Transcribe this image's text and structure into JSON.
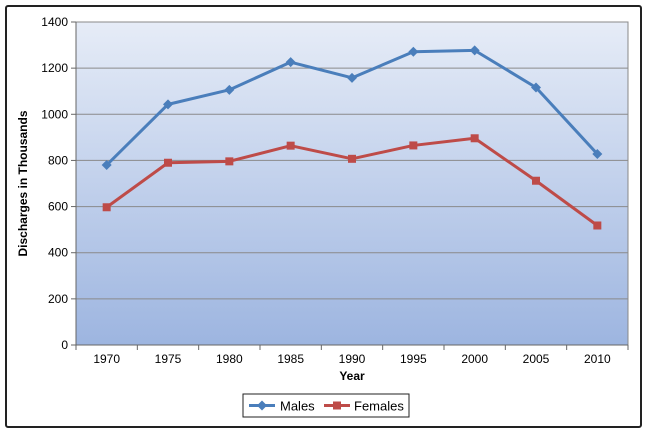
{
  "chart_data": {
    "type": "line",
    "x": [
      1970,
      1975,
      1980,
      1985,
      1990,
      1995,
      2000,
      2005,
      2010
    ],
    "x_tick_labels": [
      "1970",
      "1975",
      "1980",
      "1985",
      "1990",
      "1995",
      "2000",
      "2005",
      "2010"
    ],
    "series": [
      {
        "name": "Males",
        "color": "#4A7EBB",
        "marker": "diamond",
        "values": [
          780,
          1043,
          1106,
          1226,
          1158,
          1271,
          1277,
          1116,
          828
        ]
      },
      {
        "name": "Females",
        "color": "#BE4B48",
        "marker": "square",
        "values": [
          597,
          790,
          796,
          864,
          807,
          865,
          896,
          712,
          518
        ]
      }
    ],
    "title": "",
    "xlabel": "Year",
    "ylabel": "Discharges in Thousands",
    "ylim": [
      0,
      1400
    ],
    "yticks": [
      0,
      200,
      400,
      600,
      800,
      1000,
      1200,
      1400
    ],
    "grid": true,
    "legend_position": "bottom-center",
    "plot_background": "gradient"
  }
}
